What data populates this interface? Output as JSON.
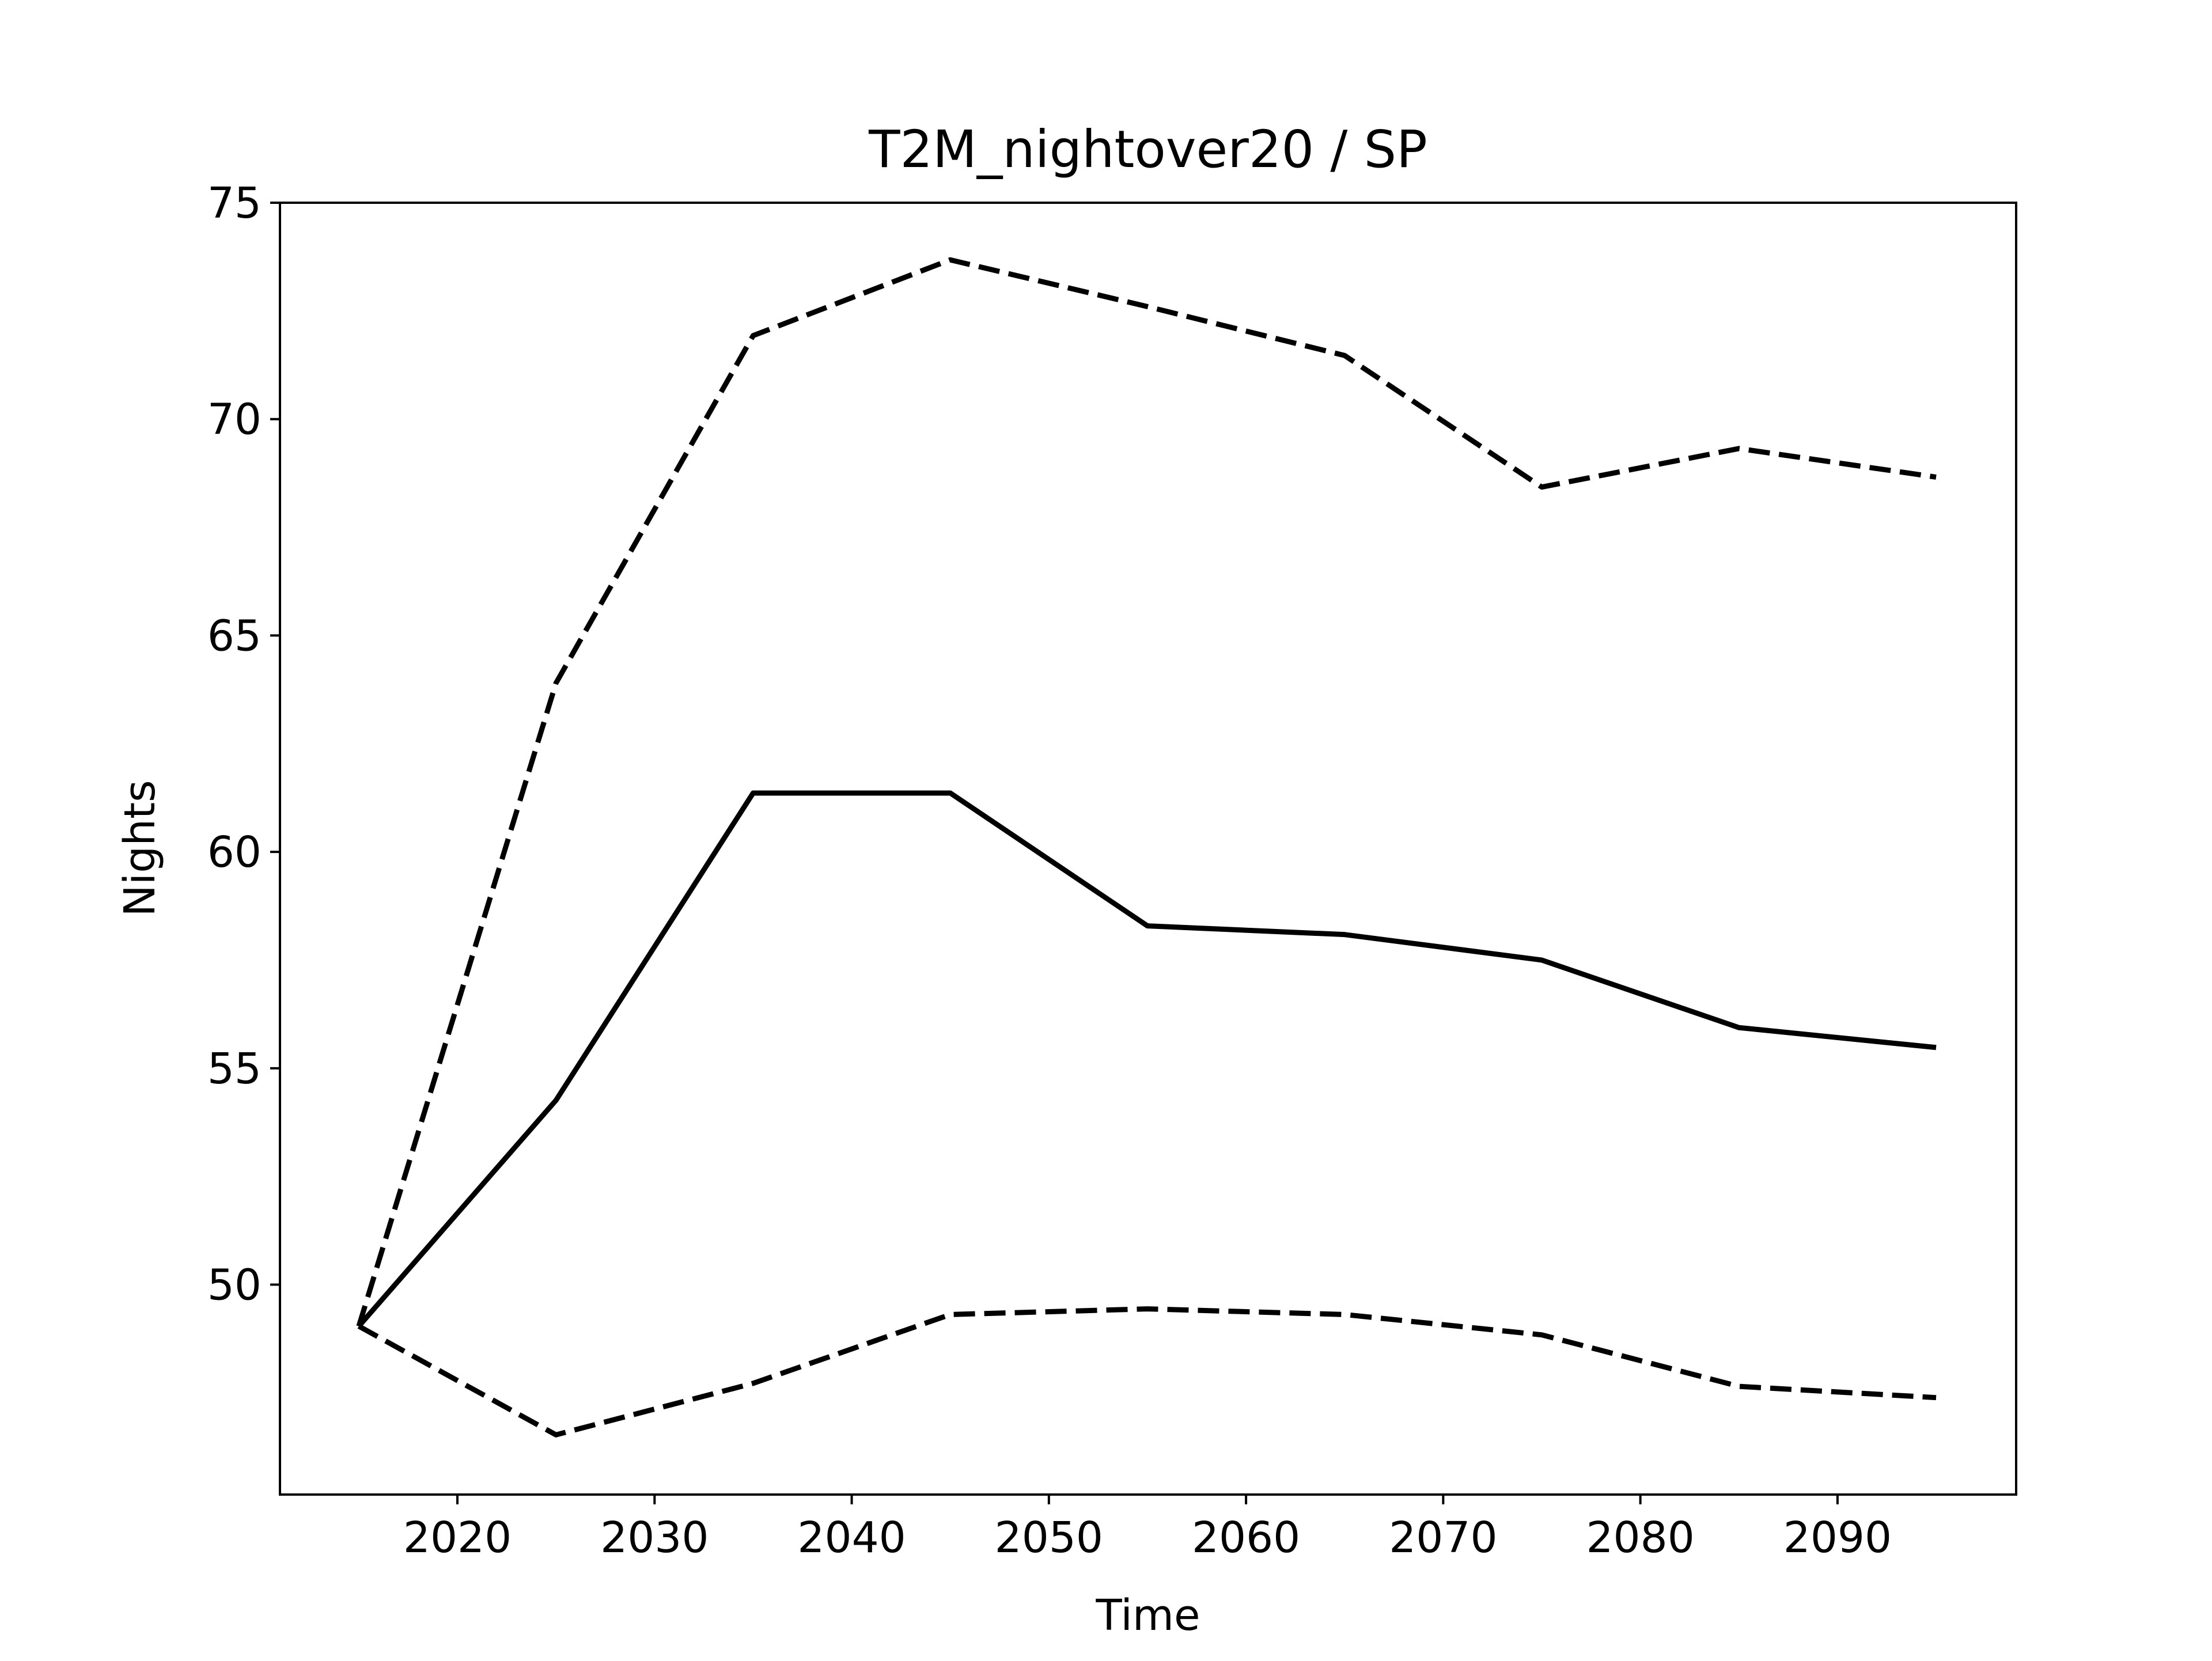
{
  "chart_data": {
    "type": "line",
    "title": "T2M_nightover20 / SP",
    "x_label": "Time",
    "y_label": "Nights",
    "x": [
      2015,
      2025,
      2035,
      2045,
      2055,
      2065,
      2075,
      2085,
      2095
    ],
    "series": [
      {
        "color": "#000000",
        "linestyle": "dashed",
        "values": [
          49.04,
          63.9,
          71.93,
          73.68,
          72.6,
          71.47,
          68.43,
          69.32,
          68.66
        ]
      },
      {
        "color": "#000000",
        "linestyle": "solid",
        "values": [
          49.04,
          54.26,
          61.36,
          61.36,
          58.29,
          58.09,
          57.5,
          55.94,
          55.48
        ]
      },
      {
        "color": "#000000",
        "linestyle": "dashed",
        "values": [
          49.04,
          46.53,
          47.72,
          49.31,
          49.44,
          49.31,
          48.84,
          47.65,
          47.39
        ]
      }
    ],
    "xlim": [
      2011,
      2099.06
    ],
    "xticks": [
      2020,
      2030,
      2040,
      2050,
      2060,
      2070,
      2080,
      2090
    ],
    "ylim": [
      45.15,
      75
    ],
    "yticks": [
      50,
      55,
      60,
      65,
      70,
      75
    ],
    "grid": false
  }
}
